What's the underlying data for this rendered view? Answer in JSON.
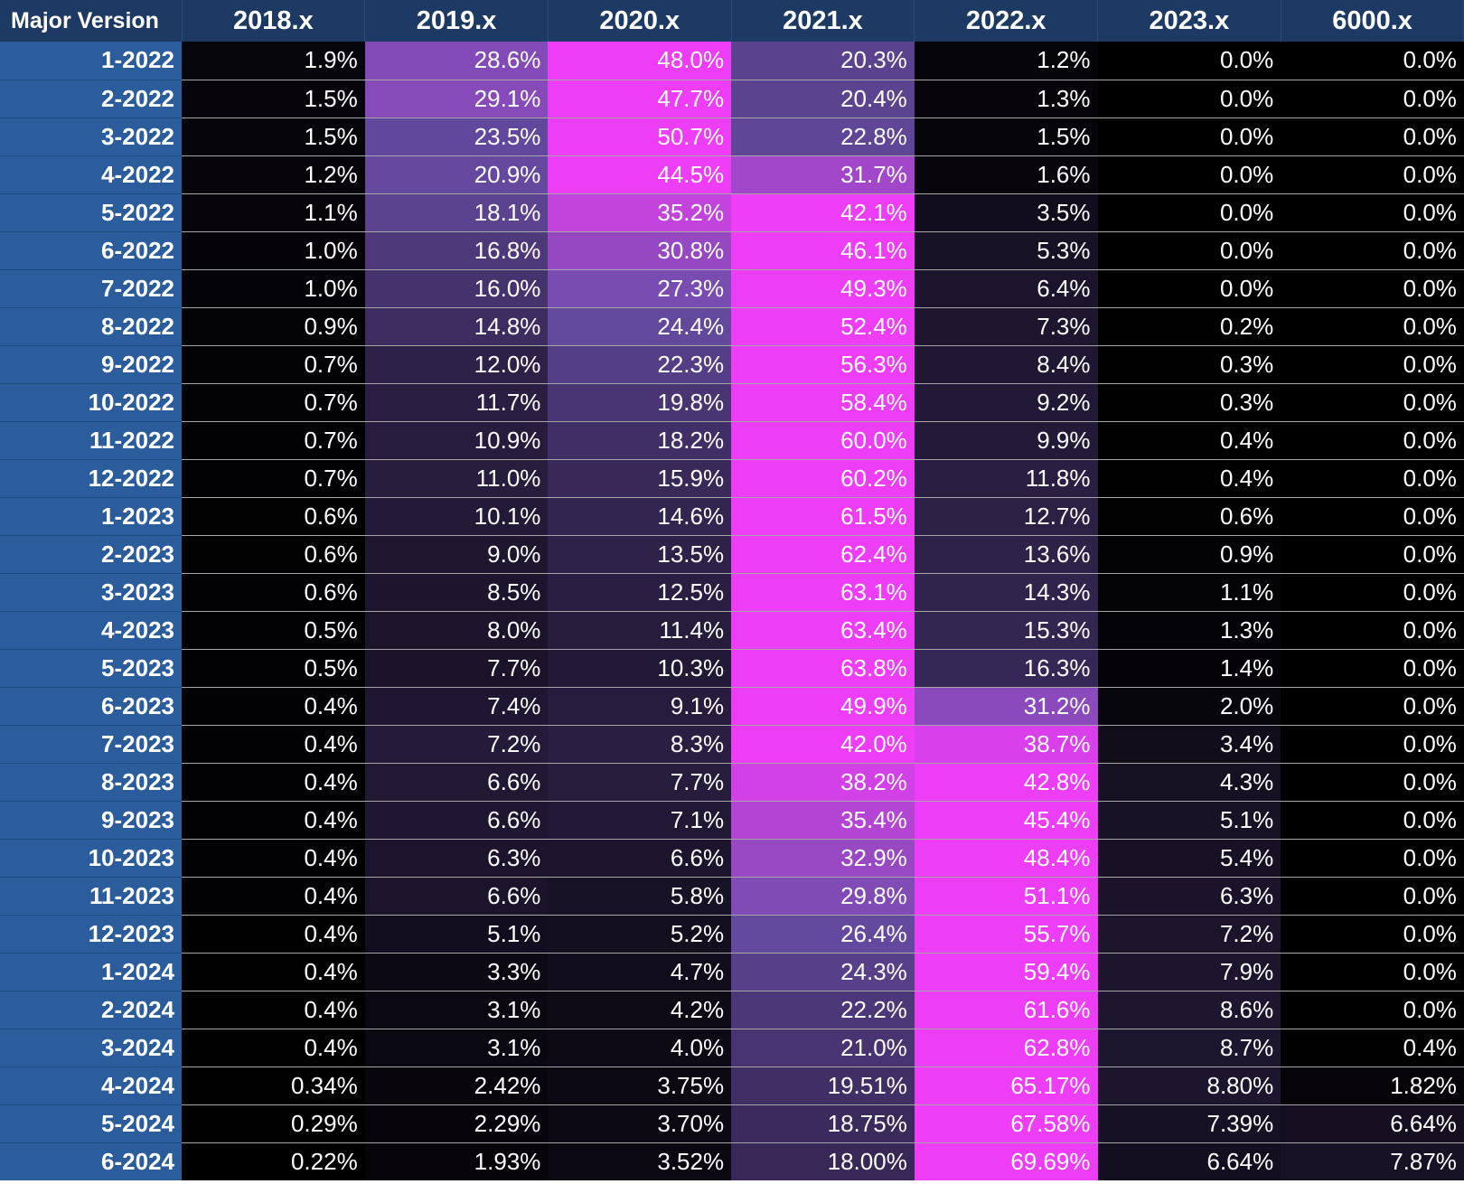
{
  "chart_data": {
    "type": "heatmap",
    "corner_label": "Major Version",
    "columns": [
      "2018.x",
      "2019.x",
      "2020.x",
      "2021.x",
      "2022.x",
      "2023.x",
      "6000.x"
    ],
    "rows": [
      {
        "label": "1-2022",
        "values": [
          "1.9%",
          "28.6%",
          "48.0%",
          "20.3%",
          "1.2%",
          "0.0%",
          "0.0%"
        ]
      },
      {
        "label": "2-2022",
        "values": [
          "1.5%",
          "29.1%",
          "47.7%",
          "20.4%",
          "1.3%",
          "0.0%",
          "0.0%"
        ]
      },
      {
        "label": "3-2022",
        "values": [
          "1.5%",
          "23.5%",
          "50.7%",
          "22.8%",
          "1.5%",
          "0.0%",
          "0.0%"
        ]
      },
      {
        "label": "4-2022",
        "values": [
          "1.2%",
          "20.9%",
          "44.5%",
          "31.7%",
          "1.6%",
          "0.0%",
          "0.0%"
        ]
      },
      {
        "label": "5-2022",
        "values": [
          "1.1%",
          "18.1%",
          "35.2%",
          "42.1%",
          "3.5%",
          "0.0%",
          "0.0%"
        ]
      },
      {
        "label": "6-2022",
        "values": [
          "1.0%",
          "16.8%",
          "30.8%",
          "46.1%",
          "5.3%",
          "0.0%",
          "0.0%"
        ]
      },
      {
        "label": "7-2022",
        "values": [
          "1.0%",
          "16.0%",
          "27.3%",
          "49.3%",
          "6.4%",
          "0.0%",
          "0.0%"
        ]
      },
      {
        "label": "8-2022",
        "values": [
          "0.9%",
          "14.8%",
          "24.4%",
          "52.4%",
          "7.3%",
          "0.2%",
          "0.0%"
        ]
      },
      {
        "label": "9-2022",
        "values": [
          "0.7%",
          "12.0%",
          "22.3%",
          "56.3%",
          "8.4%",
          "0.3%",
          "0.0%"
        ]
      },
      {
        "label": "10-2022",
        "values": [
          "0.7%",
          "11.7%",
          "19.8%",
          "58.4%",
          "9.2%",
          "0.3%",
          "0.0%"
        ]
      },
      {
        "label": "11-2022",
        "values": [
          "0.7%",
          "10.9%",
          "18.2%",
          "60.0%",
          "9.9%",
          "0.4%",
          "0.0%"
        ]
      },
      {
        "label": "12-2022",
        "values": [
          "0.7%",
          "11.0%",
          "15.9%",
          "60.2%",
          "11.8%",
          "0.4%",
          "0.0%"
        ]
      },
      {
        "label": "1-2023",
        "values": [
          "0.6%",
          "10.1%",
          "14.6%",
          "61.5%",
          "12.7%",
          "0.6%",
          "0.0%"
        ]
      },
      {
        "label": "2-2023",
        "values": [
          "0.6%",
          "9.0%",
          "13.5%",
          "62.4%",
          "13.6%",
          "0.9%",
          "0.0%"
        ]
      },
      {
        "label": "3-2023",
        "values": [
          "0.6%",
          "8.5%",
          "12.5%",
          "63.1%",
          "14.3%",
          "1.1%",
          "0.0%"
        ]
      },
      {
        "label": "4-2023",
        "values": [
          "0.5%",
          "8.0%",
          "11.4%",
          "63.4%",
          "15.3%",
          "1.3%",
          "0.0%"
        ]
      },
      {
        "label": "5-2023",
        "values": [
          "0.5%",
          "7.7%",
          "10.3%",
          "63.8%",
          "16.3%",
          "1.4%",
          "0.0%"
        ]
      },
      {
        "label": "6-2023",
        "values": [
          "0.4%",
          "7.4%",
          "9.1%",
          "49.9%",
          "31.2%",
          "2.0%",
          "0.0%"
        ]
      },
      {
        "label": "7-2023",
        "values": [
          "0.4%",
          "7.2%",
          "8.3%",
          "42.0%",
          "38.7%",
          "3.4%",
          "0.0%"
        ]
      },
      {
        "label": "8-2023",
        "values": [
          "0.4%",
          "6.6%",
          "7.7%",
          "38.2%",
          "42.8%",
          "4.3%",
          "0.0%"
        ]
      },
      {
        "label": "9-2023",
        "values": [
          "0.4%",
          "6.6%",
          "7.1%",
          "35.4%",
          "45.4%",
          "5.1%",
          "0.0%"
        ]
      },
      {
        "label": "10-2023",
        "values": [
          "0.4%",
          "6.3%",
          "6.6%",
          "32.9%",
          "48.4%",
          "5.4%",
          "0.0%"
        ]
      },
      {
        "label": "11-2023",
        "values": [
          "0.4%",
          "6.6%",
          "5.8%",
          "29.8%",
          "51.1%",
          "6.3%",
          "0.0%"
        ]
      },
      {
        "label": "12-2023",
        "values": [
          "0.4%",
          "5.1%",
          "5.2%",
          "26.4%",
          "55.7%",
          "7.2%",
          "0.0%"
        ]
      },
      {
        "label": "1-2024",
        "values": [
          "0.4%",
          "3.3%",
          "4.7%",
          "24.3%",
          "59.4%",
          "7.9%",
          "0.0%"
        ]
      },
      {
        "label": "2-2024",
        "values": [
          "0.4%",
          "3.1%",
          "4.2%",
          "22.2%",
          "61.6%",
          "8.6%",
          "0.0%"
        ]
      },
      {
        "label": "3-2024",
        "values": [
          "0.4%",
          "3.1%",
          "4.0%",
          "21.0%",
          "62.8%",
          "8.7%",
          "0.4%"
        ]
      },
      {
        "label": "4-2024",
        "values": [
          "0.34%",
          "2.42%",
          "3.75%",
          "19.51%",
          "65.17%",
          "8.80%",
          "1.82%"
        ]
      },
      {
        "label": "5-2024",
        "values": [
          "0.29%",
          "2.29%",
          "3.70%",
          "18.75%",
          "67.58%",
          "7.39%",
          "6.64%"
        ]
      },
      {
        "label": "6-2024",
        "values": [
          "0.22%",
          "1.93%",
          "3.52%",
          "18.00%",
          "69.69%",
          "6.64%",
          "7.87%"
        ]
      }
    ]
  },
  "colors": {
    "header_bg": "#1d3a64",
    "row_label_bg": "#2b5d9c",
    "cell_min": "#000000",
    "cell_mid": "#6a4ea8",
    "cell_max": "#ee3df7"
  }
}
